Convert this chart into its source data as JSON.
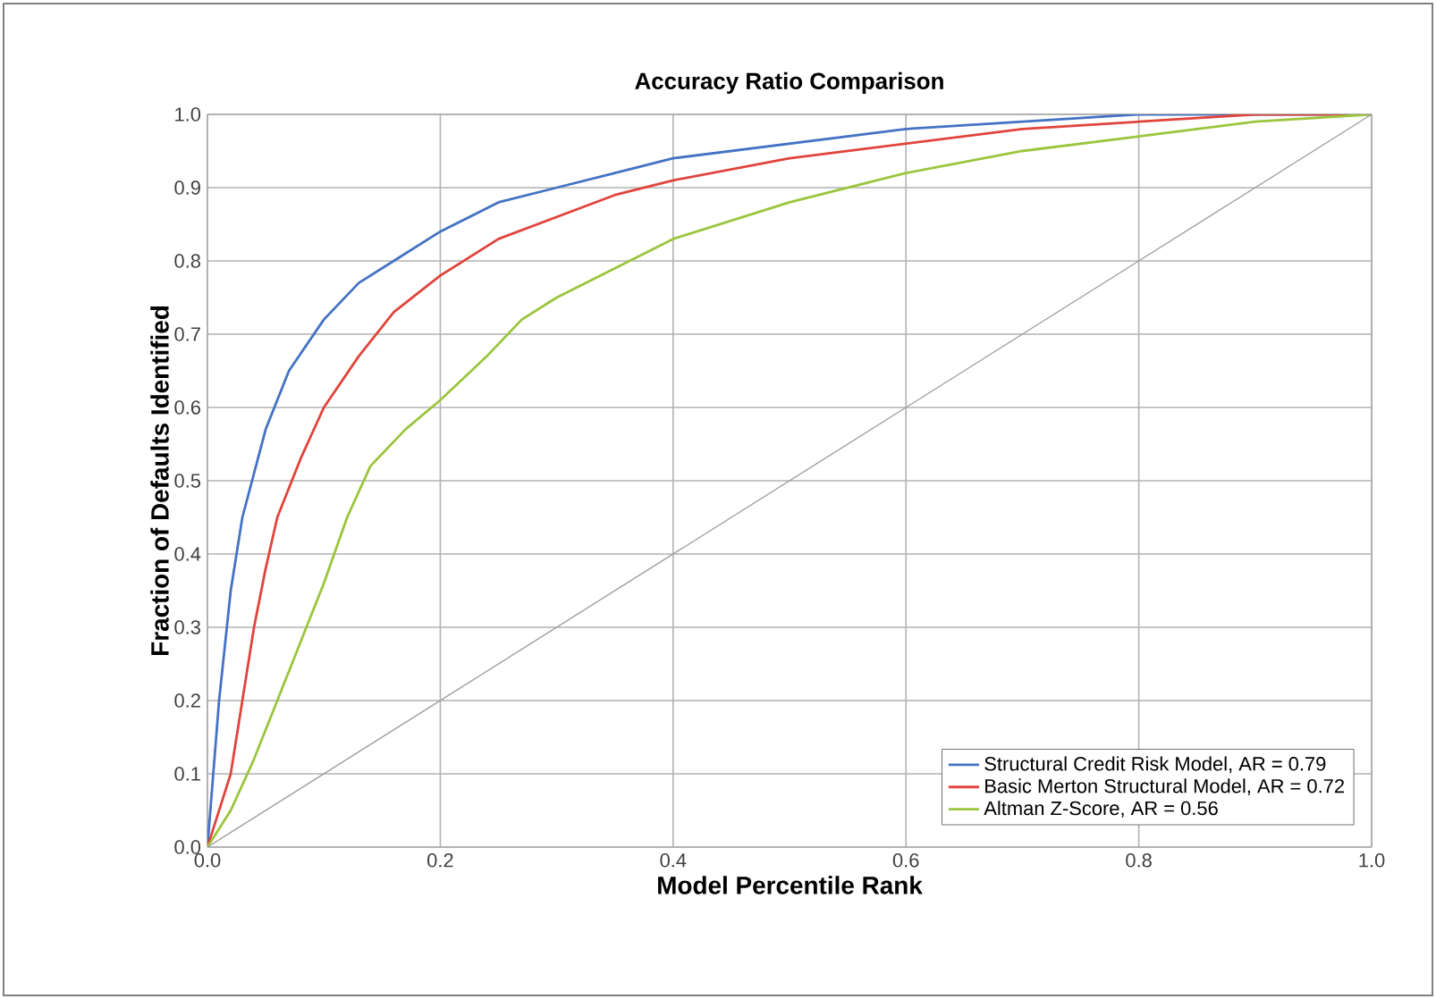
{
  "chart_data": {
    "type": "line",
    "title": "Accuracy Ratio Comparison",
    "xlabel": "Model Percentile Rank",
    "ylabel": "Fraction of Defaults Identified",
    "xlim": [
      0,
      1
    ],
    "ylim": [
      0,
      1
    ],
    "xticks": [
      {
        "value": 0,
        "label": "0.0"
      },
      0.2,
      0.4,
      0.6,
      0.8,
      {
        "value": 1,
        "label": "1.0"
      }
    ],
    "yticks": [
      {
        "value": 0,
        "label": "0.0"
      },
      0.1,
      0.2,
      0.3,
      0.4,
      0.5,
      0.6,
      0.7,
      0.8,
      0.9,
      {
        "value": 1,
        "label": "1.0"
      }
    ],
    "grid": true,
    "legend": "bottom right",
    "series": [
      {
        "name": "Structural Credit Risk Model, AR = 0.79",
        "color": "#4472c4",
        "x": [
          0,
          0.01,
          0.02,
          0.03,
          0.05,
          0.07,
          0.1,
          0.13,
          0.16,
          0.2,
          0.25,
          0.3,
          0.35,
          0.4,
          0.5,
          0.6,
          0.7,
          0.8,
          1
        ],
        "values": [
          0,
          0.2,
          0.35,
          0.45,
          0.57,
          0.65,
          0.72,
          0.77,
          0.8,
          0.84,
          0.88,
          0.9,
          0.92,
          0.94,
          0.96,
          0.98,
          0.99,
          1.0,
          1.0
        ]
      },
      {
        "name": "Basic Merton Structural Model, AR = 0.72",
        "color": "#e0443c",
        "x": [
          0,
          0.02,
          0.03,
          0.04,
          0.05,
          0.06,
          0.08,
          0.1,
          0.13,
          0.16,
          0.2,
          0.25,
          0.3,
          0.35,
          0.4,
          0.5,
          0.6,
          0.7,
          0.8,
          0.9,
          1
        ],
        "values": [
          0,
          0.1,
          0.2,
          0.3,
          0.38,
          0.45,
          0.53,
          0.6,
          0.67,
          0.73,
          0.78,
          0.83,
          0.86,
          0.89,
          0.91,
          0.94,
          0.96,
          0.98,
          0.99,
          1.0,
          1.0
        ]
      },
      {
        "name": "Altman Z-Score, AR = 0.56",
        "color": "#9bc53d",
        "x": [
          0,
          0.02,
          0.04,
          0.06,
          0.08,
          0.1,
          0.12,
          0.14,
          0.17,
          0.2,
          0.24,
          0.27,
          0.3,
          0.35,
          0.4,
          0.5,
          0.6,
          0.7,
          0.8,
          0.9,
          1
        ],
        "values": [
          0,
          0.05,
          0.12,
          0.2,
          0.28,
          0.36,
          0.45,
          0.52,
          0.57,
          0.61,
          0.67,
          0.72,
          0.75,
          0.79,
          0.83,
          0.88,
          0.92,
          0.95,
          0.97,
          0.99,
          1.0
        ]
      },
      {
        "color": "#a0a0a0",
        "x": [
          0,
          1
        ],
        "values": [
          0,
          1
        ]
      }
    ]
  }
}
